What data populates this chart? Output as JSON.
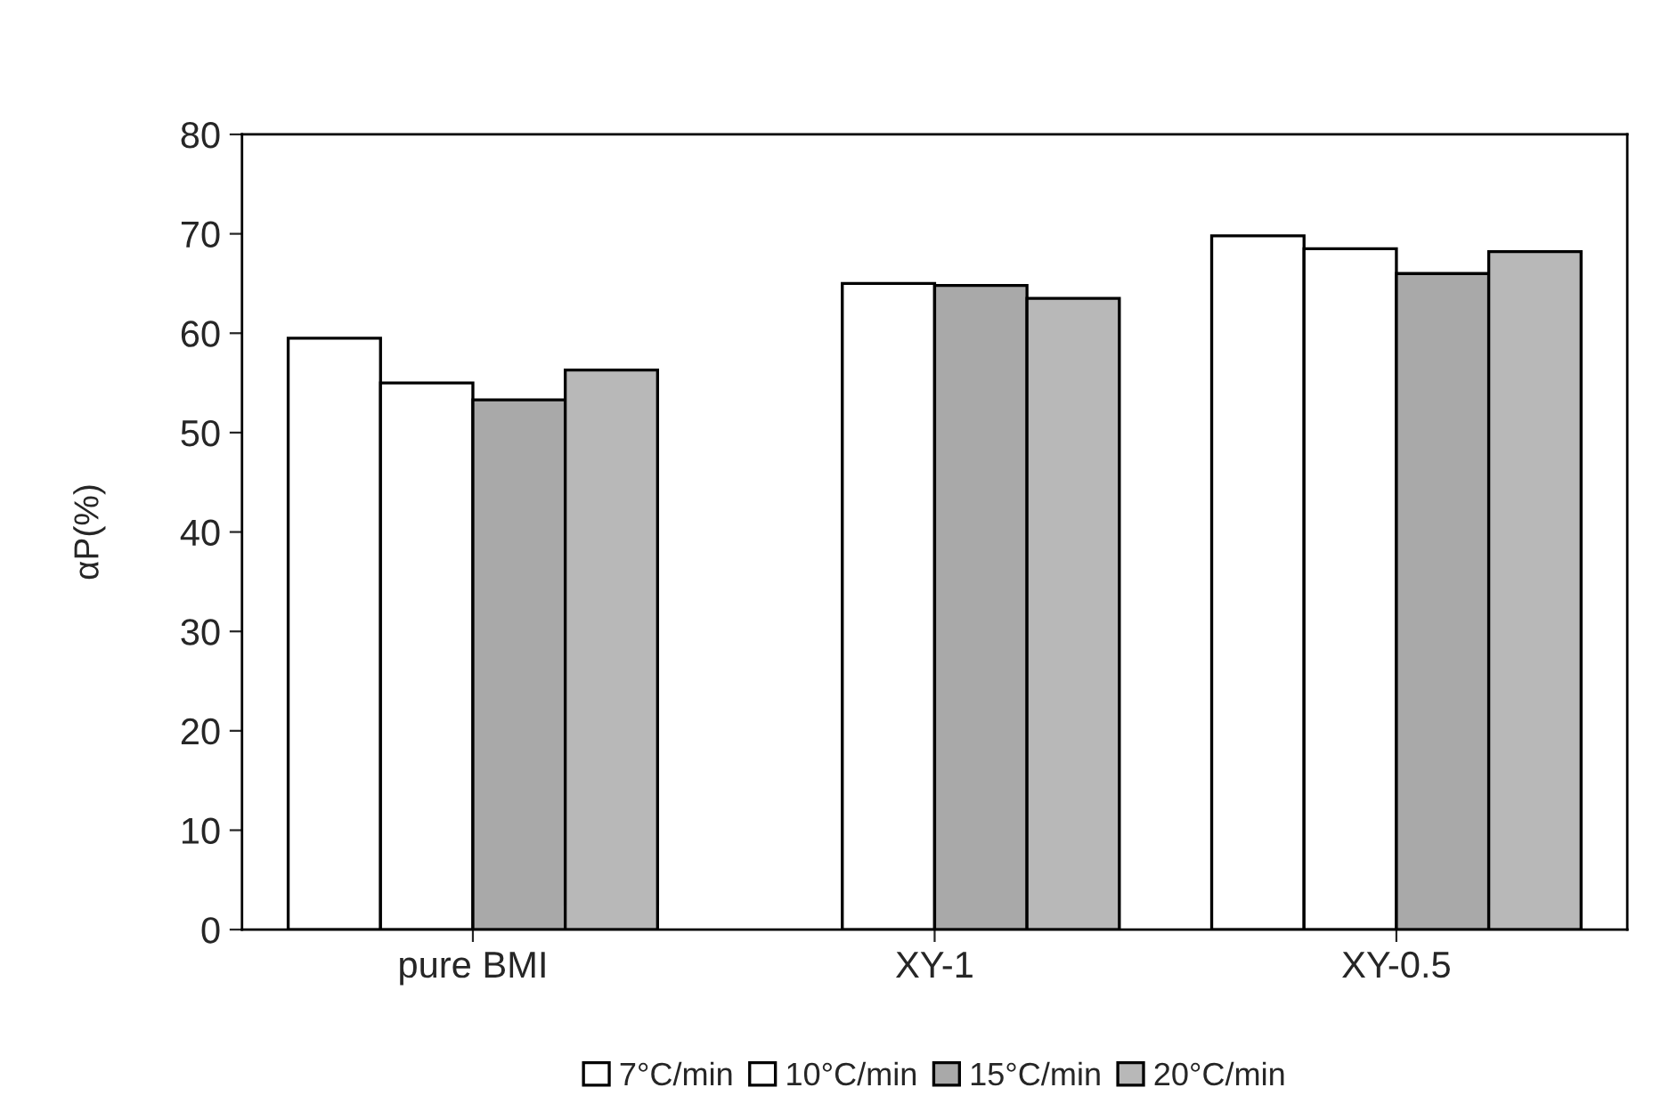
{
  "chart_data": {
    "type": "bar",
    "ylabel": "αP(%)",
    "categories": [
      "pure BMI",
      "XY-1",
      "XY-0.5"
    ],
    "series": [
      {
        "name": "7°C/min",
        "color": "#ffffff",
        "values": [
          59.5,
          null,
          69.8
        ]
      },
      {
        "name": "10°C/min",
        "color": "#ffffff",
        "values": [
          55,
          65,
          68.5
        ]
      },
      {
        "name": "15°C/min",
        "color": "#a9a9a9",
        "values": [
          53.3,
          64.8,
          66
        ]
      },
      {
        "name": "20°C/min",
        "color": "#b8b8b8",
        "values": [
          56.3,
          63.5,
          68.2
        ]
      }
    ],
    "ylim": [
      0,
      80
    ],
    "yticks": [
      0,
      10,
      20,
      30,
      40,
      50,
      60,
      70,
      80
    ],
    "grid": false,
    "legend": "bottom"
  }
}
